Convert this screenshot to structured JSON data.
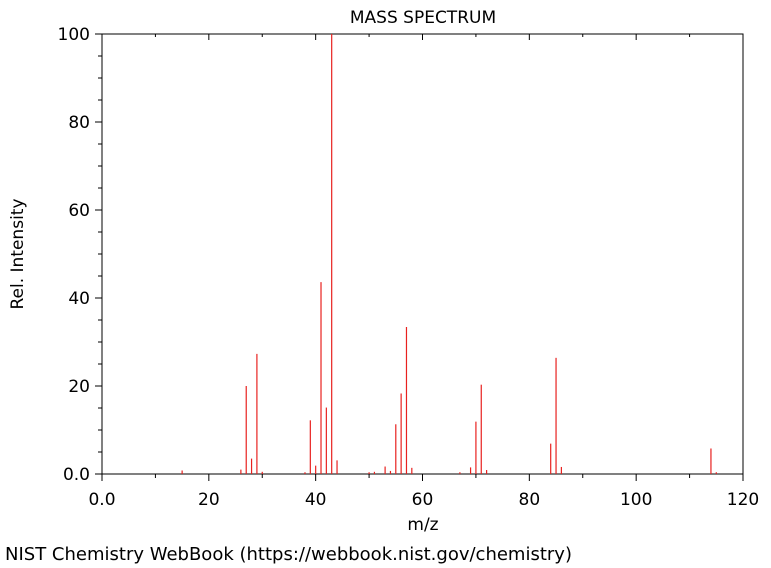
{
  "footer": "NIST Chemistry WebBook (https://webbook.nist.gov/chemistry)",
  "chart_data": {
    "type": "bar",
    "title": "MASS SPECTRUM",
    "xlabel": "m/z",
    "ylabel": "Rel. Intensity",
    "xlim": [
      0,
      120
    ],
    "ylim": [
      0,
      100
    ],
    "x_ticks": [
      "0.0",
      "20",
      "40",
      "60",
      "80",
      "100",
      "120"
    ],
    "y_ticks": [
      "0.0",
      "20",
      "40",
      "60",
      "80",
      "100"
    ],
    "grid": false,
    "bar_color": "#e8211f",
    "series": [
      {
        "peaks": [
          {
            "x": 15,
            "y": 0.8
          },
          {
            "x": 26,
            "y": 1.0
          },
          {
            "x": 27,
            "y": 20.0
          },
          {
            "x": 28,
            "y": 3.5
          },
          {
            "x": 29,
            "y": 27.3
          },
          {
            "x": 30,
            "y": 0.5
          },
          {
            "x": 38,
            "y": 0.4
          },
          {
            "x": 39,
            "y": 12.2
          },
          {
            "x": 40,
            "y": 1.9
          },
          {
            "x": 41,
            "y": 43.6
          },
          {
            "x": 42,
            "y": 15.1
          },
          {
            "x": 43,
            "y": 100.0
          },
          {
            "x": 44,
            "y": 3.1
          },
          {
            "x": 50,
            "y": 0.4
          },
          {
            "x": 51,
            "y": 0.5
          },
          {
            "x": 53,
            "y": 1.7
          },
          {
            "x": 54,
            "y": 0.7
          },
          {
            "x": 55,
            "y": 11.3
          },
          {
            "x": 56,
            "y": 18.3
          },
          {
            "x": 57,
            "y": 33.4
          },
          {
            "x": 58,
            "y": 1.4
          },
          {
            "x": 67,
            "y": 0.4
          },
          {
            "x": 69,
            "y": 1.5
          },
          {
            "x": 70,
            "y": 11.9
          },
          {
            "x": 71,
            "y": 20.3
          },
          {
            "x": 72,
            "y": 0.9
          },
          {
            "x": 84,
            "y": 6.9
          },
          {
            "x": 85,
            "y": 26.4
          },
          {
            "x": 86,
            "y": 1.6
          },
          {
            "x": 114,
            "y": 5.8
          },
          {
            "x": 115,
            "y": 0.4
          }
        ]
      }
    ]
  }
}
